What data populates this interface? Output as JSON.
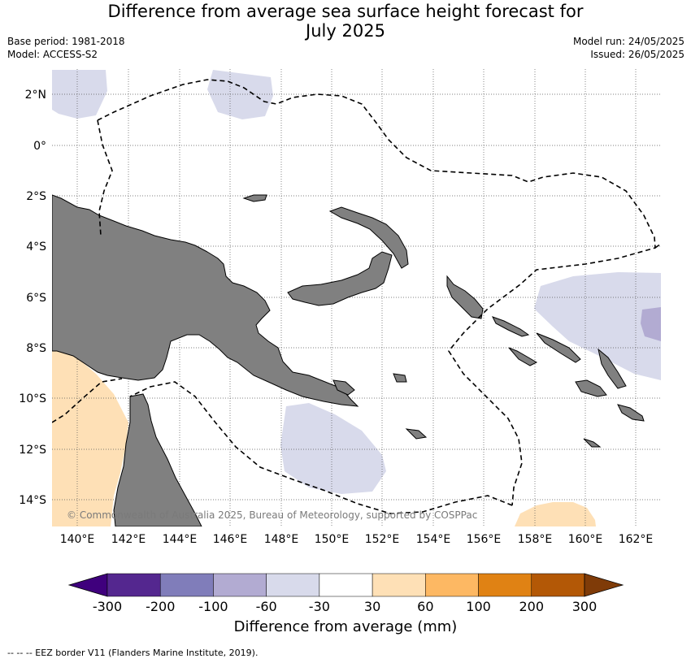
{
  "title_line1": "Difference from average sea surface height forecast for",
  "title_line2": "July 2025",
  "base_period": "Base period: 1981-2018",
  "model": "Model: ACCESS-S2",
  "model_run": "Model run: 24/05/2025",
  "issued": "Issued: 26/05/2025",
  "copyright": "© Commonwealth of Australia 2025, Bureau of Meteorology, supported by COSPPac",
  "lon_labels": [
    "140°E",
    "142°E",
    "144°E",
    "146°E",
    "148°E",
    "150°E",
    "152°E",
    "154°E",
    "156°E",
    "158°E",
    "160°E",
    "162°E"
  ],
  "lat_labels": [
    "2°N",
    "0°",
    "2°S",
    "4°S",
    "6°S",
    "8°S",
    "10°S",
    "12°S",
    "14°S"
  ],
  "colorbar": {
    "title": "Difference from average (mm)",
    "ticks": [
      "-300",
      "-200",
      "-100",
      "-60",
      "-30",
      "30",
      "60",
      "100",
      "200",
      "300"
    ],
    "colors": [
      "#3f007d",
      "#54278f",
      "#807dba",
      "#b2abd2",
      "#d8daeb",
      "#ffffff",
      "#fee0b6",
      "#fdb863",
      "#e08214",
      "#b35806",
      "#7f3b08"
    ]
  },
  "legend_note": "-- -- -- EEZ border V11 (Flanders Marine Institute, 2019).",
  "colors": {
    "land": "#808080",
    "ocean": "#ffffff",
    "eez": "#000000"
  }
}
